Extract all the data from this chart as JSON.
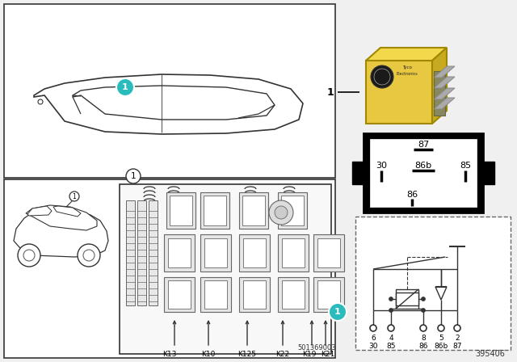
{
  "bg_color": "#f0f0f0",
  "panel_bg": "#ffffff",
  "border_color": "#555555",
  "teal_color": "#2ABCBC",
  "label_1": "1",
  "part_number": "395406",
  "fuse_box_code": "501369003",
  "relay_body_color": "#E8C840",
  "relay_dark": "#C8A800",
  "relay_pin_color": "#AAAAAA",
  "black": "#000000",
  "dark_gray": "#333333",
  "med_gray": "#666666",
  "light_gray": "#e0e0e0",
  "white": "#ffffff"
}
